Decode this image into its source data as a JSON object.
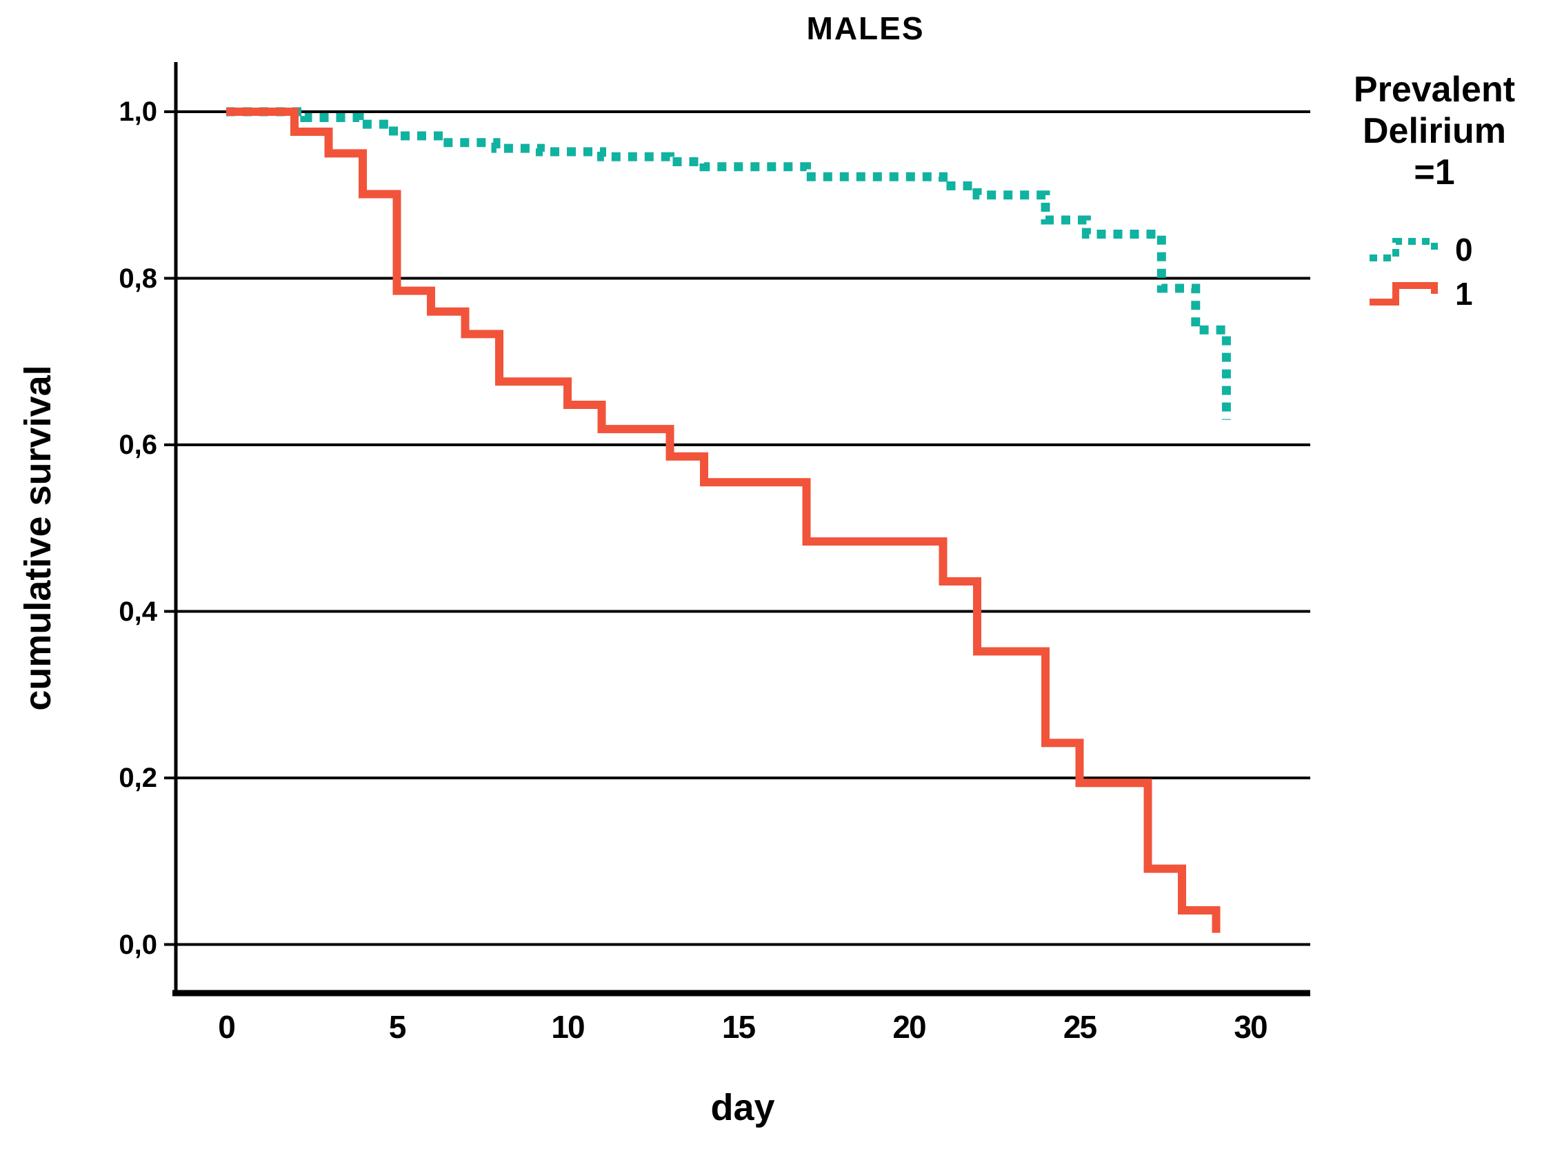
{
  "title": "MALES",
  "legend": {
    "title_line1": "Prevalent",
    "title_line2": "Delirium",
    "title_line3": "=1",
    "items": [
      {
        "label": "0",
        "style": "dashed",
        "color": "#10B2A0"
      },
      {
        "label": "1",
        "style": "solid",
        "color": "#F1543A"
      }
    ]
  },
  "chart_data": {
    "type": "line",
    "line_style": "step-post",
    "title": "MALES",
    "xlabel": "day",
    "ylabel": "cumulative survival",
    "x_ticks": [
      0,
      5,
      10,
      15,
      20,
      25,
      30
    ],
    "y_ticks": [
      {
        "value": 1.0,
        "label": "1,0"
      },
      {
        "value": 0.8,
        "label": "0,8"
      },
      {
        "value": 0.6,
        "label": "0,6"
      },
      {
        "value": 0.4,
        "label": "0,4"
      },
      {
        "value": 0.2,
        "label": "0,2"
      },
      {
        "value": 0.0,
        "label": "0,0"
      }
    ],
    "xlim": [
      0,
      30
    ],
    "ylim": [
      0.0,
      1.0
    ],
    "grid": "horizontal",
    "legend_position": "right",
    "series": [
      {
        "name": "0",
        "color": "#10B2A0",
        "dash": "dashed",
        "points": [
          [
            0,
            1.0
          ],
          [
            2.3,
            0.993
          ],
          [
            3.9,
            0.985
          ],
          [
            4.9,
            0.971
          ],
          [
            6.5,
            0.963
          ],
          [
            7.9,
            0.956
          ],
          [
            9.2,
            0.952
          ],
          [
            11,
            0.946
          ],
          [
            13,
            0.94
          ],
          [
            14,
            0.934
          ],
          [
            17,
            0.922
          ],
          [
            21,
            0.911
          ],
          [
            22,
            0.9
          ],
          [
            24,
            0.87
          ],
          [
            25.2,
            0.853
          ],
          [
            27.4,
            0.788
          ],
          [
            28.4,
            0.738
          ],
          [
            29.3,
            0.63
          ]
        ]
      },
      {
        "name": "1",
        "color": "#F1543A",
        "dash": "solid",
        "points": [
          [
            0,
            1.0
          ],
          [
            2,
            0.976
          ],
          [
            3,
            0.95
          ],
          [
            4,
            0.901
          ],
          [
            5,
            0.785
          ],
          [
            6,
            0.76
          ],
          [
            7,
            0.733
          ],
          [
            8,
            0.676
          ],
          [
            10,
            0.648
          ],
          [
            11,
            0.619
          ],
          [
            13,
            0.586
          ],
          [
            14,
            0.555
          ],
          [
            17,
            0.484
          ],
          [
            21,
            0.436
          ],
          [
            22,
            0.352
          ],
          [
            24,
            0.242
          ],
          [
            25,
            0.194
          ],
          [
            27,
            0.091
          ],
          [
            28,
            0.041
          ],
          [
            29,
            0.014
          ]
        ]
      }
    ]
  }
}
